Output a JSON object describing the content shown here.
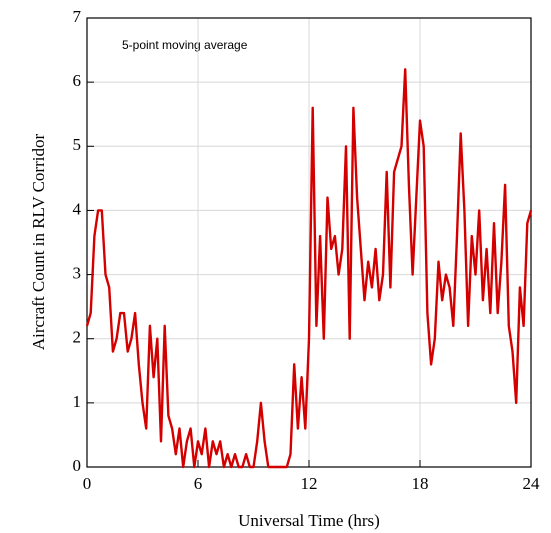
{
  "chart_data": {
    "type": "line",
    "xlabel": "Universal Time (hrs)",
    "ylabel": "Aircraft Count in RLV Corridor",
    "annotation": "5-point moving average",
    "x": [
      0,
      0.2,
      0.4,
      0.6,
      0.8,
      1,
      1.2,
      1.4,
      1.6,
      1.8,
      2,
      2.2,
      2.4,
      2.6,
      2.8,
      3,
      3.2,
      3.4,
      3.6,
      3.8,
      4,
      4.2,
      4.4,
      4.6,
      4.8,
      5,
      5.2,
      5.4,
      5.6,
      5.8,
      6,
      6.2,
      6.4,
      6.6,
      6.8,
      7,
      7.2,
      7.4,
      7.6,
      7.8,
      8,
      8.2,
      8.4,
      8.6,
      8.8,
      9,
      9.2,
      9.4,
      9.6,
      9.8,
      10,
      10.2,
      10.4,
      10.6,
      10.8,
      11,
      11.2,
      11.4,
      11.6,
      11.8,
      12,
      12.2,
      12.4,
      12.6,
      12.8,
      13,
      13.2,
      13.4,
      13.6,
      13.8,
      14,
      14.2,
      14.4,
      14.6,
      14.8,
      15,
      15.2,
      15.4,
      15.6,
      15.8,
      16,
      16.2,
      16.4,
      16.6,
      16.8,
      17,
      17.2,
      17.4,
      17.6,
      17.8,
      18,
      18.2,
      18.4,
      18.6,
      18.8,
      19,
      19.2,
      19.4,
      19.6,
      19.8,
      20,
      20.2,
      20.4,
      20.6,
      20.8,
      21,
      21.2,
      21.4,
      21.6,
      21.8,
      22,
      22.2,
      22.4,
      22.6,
      22.8,
      23,
      23.2,
      23.4,
      23.6,
      23.8,
      24
    ],
    "series": [
      {
        "color": "#d40000",
        "values": [
          2.2,
          2.4,
          3.6,
          4.0,
          4.0,
          3.0,
          2.8,
          1.8,
          2.0,
          2.4,
          2.4,
          1.8,
          2.0,
          2.4,
          1.6,
          1.0,
          0.6,
          2.2,
          1.4,
          2.0,
          0.4,
          2.2,
          0.8,
          0.6,
          0.2,
          0.6,
          0,
          0.4,
          0.6,
          0,
          0.4,
          0.2,
          0.6,
          0,
          0.4,
          0.2,
          0.4,
          0,
          0.2,
          0,
          0.2,
          0,
          0,
          0.2,
          0,
          0,
          0.4,
          1.0,
          0.4,
          0,
          0,
          0,
          0,
          0,
          0,
          0.2,
          1.6,
          0.6,
          1.4,
          0.6,
          2.0,
          5.6,
          2.2,
          3.6,
          2.0,
          4.2,
          3.4,
          3.6,
          3.0,
          3.4,
          5.0,
          2.0,
          5.6,
          4.2,
          3.4,
          2.6,
          3.2,
          2.8,
          3.4,
          2.6,
          3.0,
          4.6,
          2.8,
          4.6,
          4.8,
          5.0,
          6.2,
          4.4,
          3.0,
          4.2,
          5.4,
          5.0,
          2.4,
          1.6,
          2.0,
          3.2,
          2.6,
          3.0,
          2.8,
          2.2,
          3.6,
          5.2,
          4.0,
          2.2,
          3.6,
          3.0,
          4.0,
          2.6,
          3.4,
          2.4,
          3.8,
          2.4,
          3.2,
          4.4,
          2.2,
          1.8,
          1.0,
          2.8,
          2.2,
          3.8,
          4.0
        ]
      }
    ],
    "xlim": [
      0,
      24
    ],
    "xticks": [
      0,
      6,
      12,
      18,
      24
    ],
    "ylim": [
      0,
      7
    ],
    "yticks": [
      0,
      1,
      2,
      3,
      4,
      5,
      6,
      7
    ],
    "grid": true
  }
}
